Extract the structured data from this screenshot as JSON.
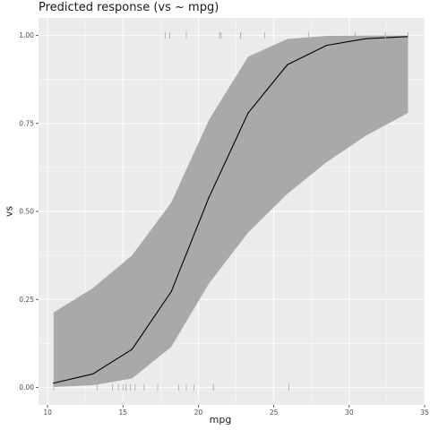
{
  "chart_data": {
    "type": "line",
    "title": "Predicted response (vs ~ mpg)",
    "xlabel": "mpg",
    "ylabel": "vs",
    "xlim": [
      9.4,
      35
    ],
    "ylim": [
      -0.05,
      1.05
    ],
    "x_ticks": [
      10,
      15,
      20,
      25,
      30,
      35
    ],
    "x_tick_labels": [
      "10",
      "15",
      "20",
      "25",
      "30",
      "35"
    ],
    "y_ticks": [
      0,
      0.25,
      0.5,
      0.75,
      1.0
    ],
    "y_tick_labels": [
      "0.00",
      "0.25",
      "0.50",
      "0.75",
      "1.00"
    ],
    "grid": true,
    "series": [
      {
        "kind": "fitted-line",
        "x": [
          10.4,
          13.0,
          15.6,
          18.2,
          20.7,
          23.3,
          25.9,
          28.5,
          31.1,
          33.9
        ],
        "y": [
          0.012,
          0.038,
          0.108,
          0.272,
          0.54,
          0.78,
          0.917,
          0.972,
          0.991,
          0.997
        ],
        "color": "#000000"
      },
      {
        "kind": "confidence-band",
        "x": [
          10.4,
          13.0,
          15.6,
          18.2,
          20.7,
          23.3,
          25.9,
          28.5,
          31.1,
          33.9
        ],
        "lower": [
          0.001,
          0.006,
          0.025,
          0.115,
          0.295,
          0.44,
          0.55,
          0.64,
          0.715,
          0.78
        ],
        "upper": [
          0.213,
          0.282,
          0.375,
          0.525,
          0.76,
          0.94,
          0.99,
          0.999,
          1.0,
          1.0
        ],
        "color": "#a9a9a9"
      }
    ],
    "rug": {
      "y0_x": [
        10.4,
        13.3,
        14.3,
        14.7,
        15.0,
        15.2,
        15.2,
        15.5,
        15.8,
        16.4,
        17.3,
        18.7,
        19.2,
        19.7,
        21.0,
        21.0,
        26.0
      ],
      "y1_x": [
        17.8,
        18.1,
        19.2,
        21.4,
        21.4,
        21.5,
        22.8,
        22.8,
        24.4,
        27.3,
        30.4,
        30.4,
        32.4,
        33.9
      ],
      "color": "#b3b3b3"
    },
    "colors": {
      "panel": "#ebebeb",
      "grid_major": "#ffffff",
      "axis_text": "#4d4d4d"
    }
  }
}
